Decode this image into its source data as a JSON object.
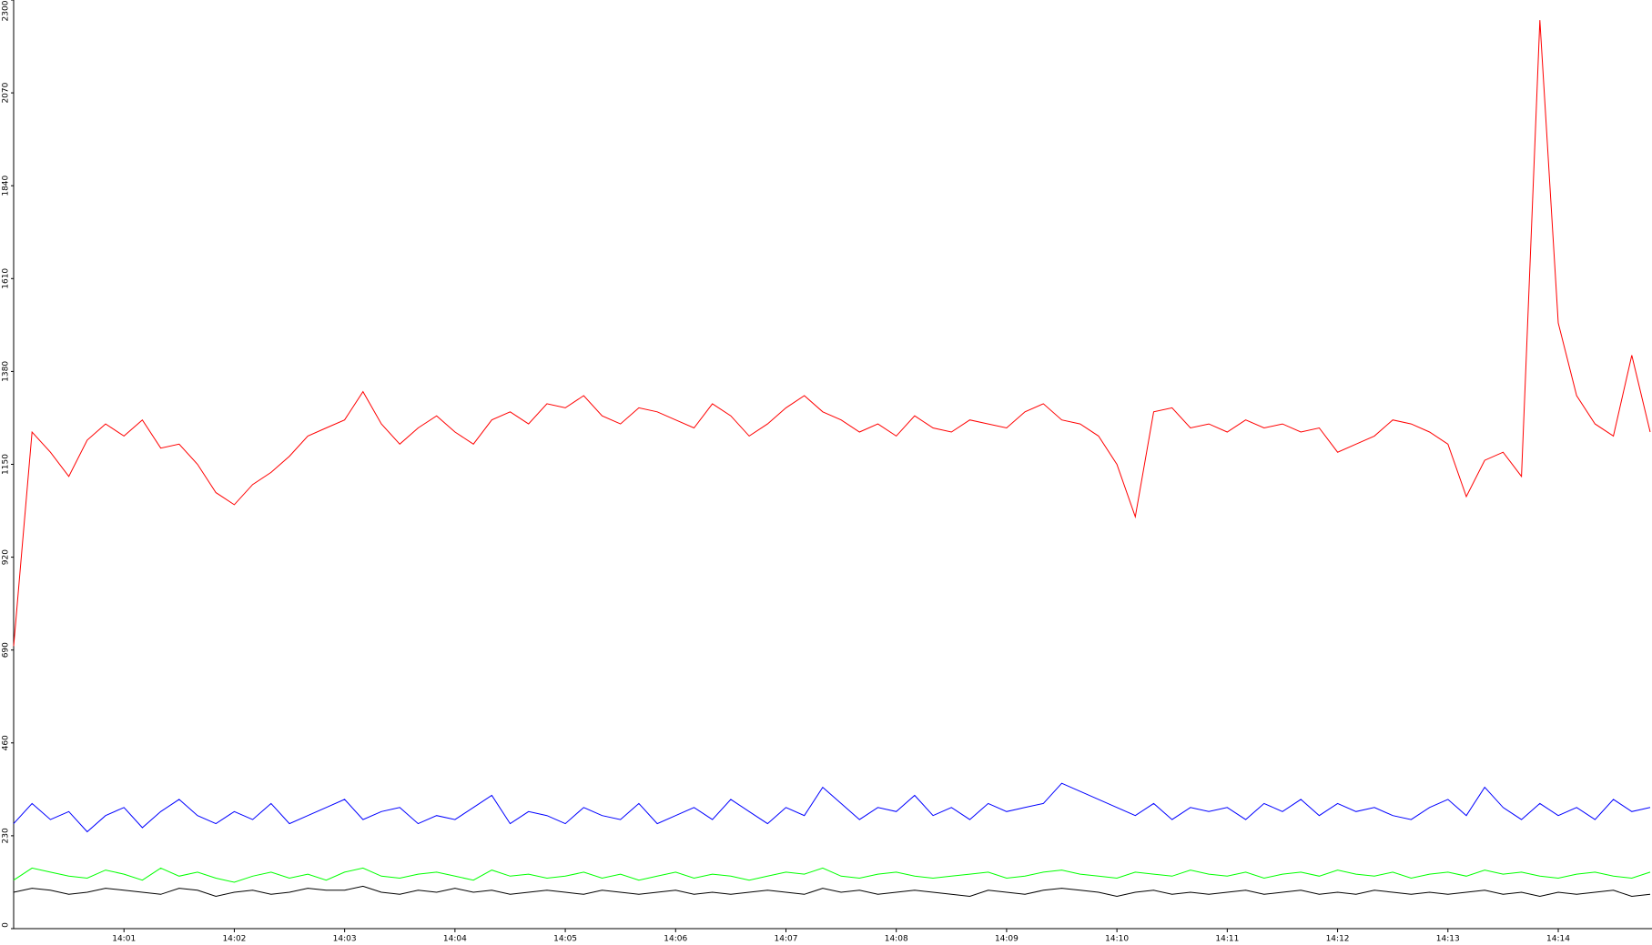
{
  "chart_data": {
    "type": "line",
    "categories": [
      null,
      null,
      null,
      null,
      null,
      null,
      "14:01",
      null,
      null,
      null,
      null,
      null,
      "14:02",
      null,
      null,
      null,
      null,
      null,
      "14:03",
      null,
      null,
      null,
      null,
      null,
      "14:04",
      null,
      null,
      null,
      null,
      null,
      "14:05",
      null,
      null,
      null,
      null,
      null,
      "14:06",
      null,
      null,
      null,
      null,
      null,
      "14:07",
      null,
      null,
      null,
      null,
      null,
      "14:08",
      null,
      null,
      null,
      null,
      null,
      "14:09",
      null,
      null,
      null,
      null,
      null,
      "14:10",
      null,
      null,
      null,
      null,
      null,
      "14:11",
      null,
      null,
      null,
      null,
      null,
      "14:12",
      null,
      null,
      null,
      null,
      null,
      "14:13",
      null,
      null,
      null,
      null,
      null,
      "14:14",
      null,
      null,
      null,
      null,
      null
    ],
    "series": [
      {
        "color": "#ff0000",
        "values": [
          700,
          1230,
          1180,
          1120,
          1210,
          1250,
          1220,
          1260,
          1190,
          1200,
          1150,
          1080,
          1050,
          1100,
          1130,
          1170,
          1220,
          1240,
          1260,
          1330,
          1250,
          1200,
          1240,
          1270,
          1230,
          1200,
          1260,
          1280,
          1250,
          1300,
          1290,
          1320,
          1270,
          1250,
          1290,
          1280,
          1260,
          1240,
          1300,
          1270,
          1220,
          1250,
          1290,
          1320,
          1280,
          1260,
          1230,
          1250,
          1220,
          1270,
          1240,
          1230,
          1260,
          1250,
          1240,
          1280,
          1300,
          1260,
          1250,
          1220,
          1150,
          1020,
          1280,
          1290,
          1240,
          1250,
          1230,
          1260,
          1240,
          1250,
          1230,
          1240,
          1180,
          1200,
          1220,
          1260,
          1250,
          1230,
          1200,
          1070,
          1160,
          1180,
          1120,
          2250,
          1500,
          1320,
          1250,
          1220,
          1420,
          1230
        ]
      },
      {
        "color": "#0000ff",
        "values": [
          260,
          310,
          270,
          290,
          240,
          280,
          300,
          250,
          290,
          320,
          280,
          260,
          290,
          270,
          310,
          260,
          280,
          300,
          320,
          270,
          290,
          300,
          260,
          280,
          270,
          300,
          330,
          260,
          290,
          280,
          260,
          300,
          280,
          270,
          310,
          260,
          280,
          300,
          270,
          320,
          290,
          260,
          300,
          280,
          350,
          310,
          270,
          300,
          290,
          330,
          280,
          300,
          270,
          310,
          290,
          300,
          310,
          360,
          340,
          320,
          300,
          280,
          310,
          270,
          300,
          290,
          300,
          270,
          310,
          290,
          320,
          280,
          310,
          290,
          300,
          280,
          270,
          300,
          320,
          280,
          350,
          300,
          270,
          310,
          280,
          300,
          270,
          320,
          290,
          300
        ]
      },
      {
        "color": "#00ff00",
        "values": [
          120,
          150,
          140,
          130,
          125,
          145,
          135,
          120,
          150,
          130,
          140,
          125,
          115,
          130,
          140,
          125,
          135,
          120,
          140,
          150,
          130,
          125,
          135,
          140,
          130,
          120,
          145,
          130,
          135,
          125,
          130,
          140,
          125,
          135,
          120,
          130,
          140,
          125,
          135,
          130,
          120,
          130,
          140,
          135,
          150,
          130,
          125,
          135,
          140,
          130,
          125,
          130,
          135,
          140,
          125,
          130,
          140,
          145,
          135,
          130,
          125,
          140,
          135,
          130,
          145,
          135,
          130,
          140,
          125,
          135,
          140,
          130,
          145,
          135,
          130,
          140,
          125,
          135,
          140,
          130,
          145,
          135,
          140,
          130,
          125,
          135,
          140,
          130,
          125,
          140
        ]
      },
      {
        "color": "#000000",
        "values": [
          90,
          100,
          95,
          85,
          90,
          100,
          95,
          90,
          85,
          100,
          95,
          80,
          90,
          95,
          85,
          90,
          100,
          95,
          95,
          105,
          90,
          85,
          95,
          90,
          100,
          90,
          95,
          85,
          90,
          95,
          90,
          85,
          95,
          90,
          85,
          90,
          95,
          85,
          90,
          85,
          90,
          95,
          90,
          85,
          100,
          90,
          95,
          85,
          90,
          95,
          90,
          85,
          80,
          95,
          90,
          85,
          95,
          100,
          95,
          90,
          80,
          90,
          95,
          85,
          90,
          85,
          90,
          95,
          85,
          90,
          95,
          85,
          90,
          85,
          95,
          90,
          85,
          90,
          85,
          90,
          95,
          85,
          90,
          80,
          90,
          85,
          90,
          95,
          80,
          85
        ]
      }
    ],
    "ylim": [
      0,
      2300
    ],
    "yticks": [
      0,
      230,
      460,
      690,
      920,
      1150,
      1380,
      1610,
      1840,
      2070,
      2300
    ],
    "grid": false
  }
}
